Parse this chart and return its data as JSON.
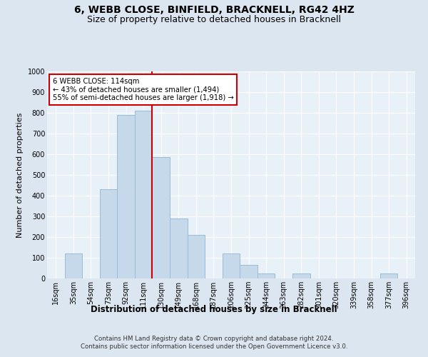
{
  "title_line1": "6, WEBB CLOSE, BINFIELD, BRACKNELL, RG42 4HZ",
  "title_line2": "Size of property relative to detached houses in Bracknell",
  "xlabel": "Distribution of detached houses by size in Bracknell",
  "ylabel": "Number of detached properties",
  "bin_labels": [
    "16sqm",
    "35sqm",
    "54sqm",
    "73sqm",
    "92sqm",
    "111sqm",
    "130sqm",
    "149sqm",
    "168sqm",
    "187sqm",
    "206sqm",
    "225sqm",
    "244sqm",
    "263sqm",
    "282sqm",
    "301sqm",
    "320sqm",
    "339sqm",
    "358sqm",
    "377sqm",
    "396sqm"
  ],
  "bar_heights": [
    0,
    120,
    0,
    430,
    790,
    810,
    585,
    290,
    210,
    0,
    120,
    65,
    25,
    0,
    25,
    0,
    0,
    0,
    0,
    25,
    0
  ],
  "bar_color": "#c6d9ea",
  "bar_edge_color": "#9bbcd4",
  "vline_color": "#cc0000",
  "vline_x_index": 5,
  "annotation_line1": "6 WEBB CLOSE: 114sqm",
  "annotation_line2": "← 43% of detached houses are smaller (1,494)",
  "annotation_line3": "55% of semi-detached houses are larger (1,918) →",
  "annotation_box_color": "#ffffff",
  "annotation_box_edge": "#cc0000",
  "ylim": [
    0,
    1000
  ],
  "yticks": [
    0,
    100,
    200,
    300,
    400,
    500,
    600,
    700,
    800,
    900,
    1000
  ],
  "bg_color": "#dce6f0",
  "plot_bg_color": "#e8f0f8",
  "footer_line1": "Contains HM Land Registry data © Crown copyright and database right 2024.",
  "footer_line2": "Contains public sector information licensed under the Open Government Licence v3.0.",
  "title_fontsize": 10,
  "subtitle_fontsize": 9,
  "ylabel_fontsize": 8,
  "xlabel_fontsize": 8.5,
  "tick_fontsize": 7,
  "footer_fontsize": 6.2
}
